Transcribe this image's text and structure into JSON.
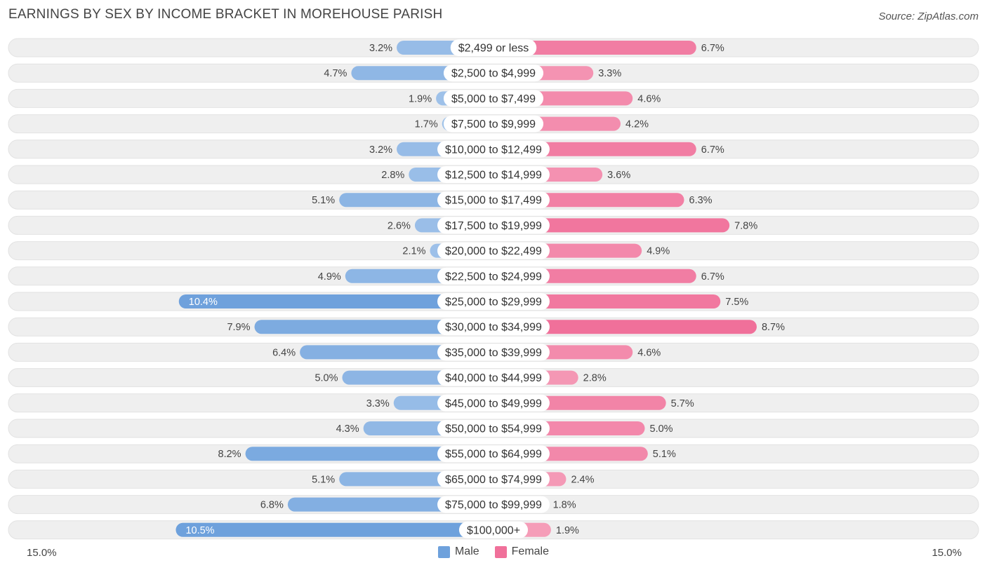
{
  "title": "EARNINGS BY SEX BY INCOME BRACKET IN MOREHOUSE PARISH",
  "source": "Source: ZipAtlas.com",
  "colors": {
    "male": "#6ea1dc",
    "male_light": "#a9c8ec",
    "female": "#f0709a",
    "female_light": "#f6a9c1",
    "row_bg": "#efefef"
  },
  "chart_data": {
    "type": "bar",
    "title": "EARNINGS BY SEX BY INCOME BRACKET IN MOREHOUSE PARISH",
    "categories": [
      "$2,499 or less",
      "$2,500 to $4,999",
      "$5,000 to $7,499",
      "$7,500 to $9,999",
      "$10,000 to $12,499",
      "$12,500 to $14,999",
      "$15,000 to $17,499",
      "$17,500 to $19,999",
      "$20,000 to $22,499",
      "$22,500 to $24,999",
      "$25,000 to $29,999",
      "$30,000 to $34,999",
      "$35,000 to $39,999",
      "$40,000 to $44,999",
      "$45,000 to $49,999",
      "$50,000 to $54,999",
      "$55,000 to $64,999",
      "$65,000 to $74,999",
      "$75,000 to $99,999",
      "$100,000+"
    ],
    "series": [
      {
        "name": "Male",
        "values": [
          3.2,
          4.7,
          1.9,
          1.7,
          3.2,
          2.8,
          5.1,
          2.6,
          2.1,
          4.9,
          10.4,
          7.9,
          6.4,
          5.0,
          3.3,
          4.3,
          8.2,
          5.1,
          6.8,
          10.5
        ]
      },
      {
        "name": "Female",
        "values": [
          6.7,
          3.3,
          4.6,
          4.2,
          6.7,
          3.6,
          6.3,
          7.8,
          4.9,
          6.7,
          7.5,
          8.7,
          4.6,
          2.8,
          5.7,
          5.0,
          5.1,
          2.4,
          1.8,
          1.9
        ]
      }
    ],
    "axis_max": 15.0,
    "axis_left_label": "15.0%",
    "axis_right_label": "15.0%",
    "legend": [
      "Male",
      "Female"
    ],
    "value_suffix": "%"
  }
}
